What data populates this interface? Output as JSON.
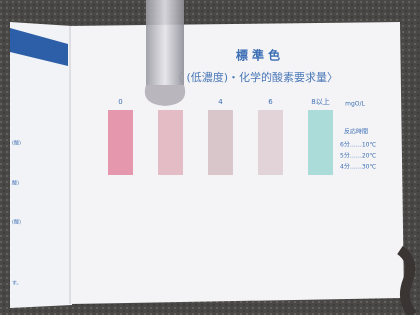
{
  "header": {
    "title": "標 準 色",
    "subtitle": "〈 (低濃度)・化学的酸素要求量〉"
  },
  "swatches": [
    {
      "label": "0",
      "color": "#e597ad"
    },
    {
      "color": "#e4bcc6"
    },
    {
      "label": "4",
      "color": "#d9c6cb"
    },
    {
      "label": "6",
      "color": "#e2d3d9"
    },
    {
      "label": "8以上",
      "color": "#acdcd9"
    }
  ],
  "unit": "mgO/L",
  "reaction": {
    "title": "反応時間",
    "rows": [
      "6分……10℃",
      "5分……20℃",
      "4分……30℃"
    ]
  },
  "left_page": {
    "lines": [
      "(酸)",
      "酸)",
      "(酸)",
      "す。"
    ]
  }
}
